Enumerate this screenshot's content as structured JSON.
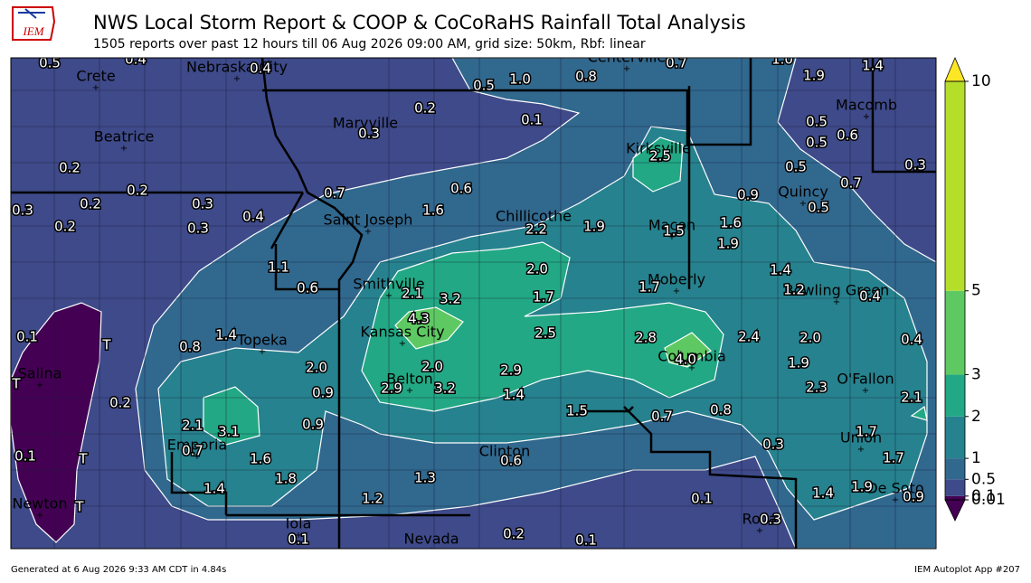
{
  "header": {
    "logo": "IEM",
    "title": "NWS Local Storm Report & COOP & CoCoRaHS Rainfall Total Analysis",
    "subtitle": "1505 reports over past 12 hours till 06 Aug 2026 09:00 AM, grid size: 50km, Rbf: linear"
  },
  "map": {
    "cities": [
      "Crete",
      "Nebraska City",
      "Centerville",
      "Beatrice",
      "Maryville",
      "Kirksville",
      "Macomb",
      "Quincy",
      "Saint Joseph",
      "Chillicothe",
      "Macon",
      "Moberly",
      "Bowling Green",
      "Smithville",
      "Kansas City",
      "Topeka",
      "Salina",
      "Belton",
      "Columbia",
      "O'Fallon",
      "Emporia",
      "Clinton",
      "Union",
      "De Soto",
      "Newton",
      "Iola",
      "Nevada",
      "Rolla"
    ],
    "labels": [
      "0.5",
      "0.4",
      "0.4",
      "0.5",
      "1.0",
      "0.8",
      "0.7",
      "1.0",
      "1.9",
      "1.4",
      "0.2",
      "0.3",
      "0.1",
      "2.5",
      "0.5",
      "0.6",
      "0.5",
      "0.5",
      "0.3",
      "0.2",
      "0.2",
      "0.7",
      "0.6",
      "0.9",
      "0.7",
      "0.5",
      "0.3",
      "0.2",
      "0.3",
      "0.2",
      "0.3",
      "0.4",
      "1.6",
      "2.2",
      "1.9",
      "1.5",
      "1.6",
      "1.9",
      "1.1",
      "0.6",
      "2.0",
      "1.4",
      "2.1",
      "3.2",
      "1.7",
      "1.7",
      "1.2",
      "0.4",
      "4.3",
      "2.5",
      "2.8",
      "4.0",
      "2.4",
      "2.0",
      "0.4",
      "0.1",
      "0.8",
      "1.4",
      "2.0",
      "2.0",
      "2.9",
      "1.9",
      "2.3",
      "0.9",
      "2.9",
      "3.2",
      "1.4",
      "2.1",
      "0.2",
      "1.5",
      "0.7",
      "0.8",
      "0.9",
      "2.1",
      "3.1",
      "0.3",
      "1.7",
      "0.1",
      "0.7",
      "1.6",
      "0.6",
      "1.7",
      "1.8",
      "1.3",
      "1.4",
      "1.2",
      "0.1",
      "1.4",
      "1.9",
      "0.9",
      "0.3",
      "0.1",
      "0.2",
      "0.1",
      "T",
      "T",
      "T",
      "T"
    ]
  },
  "colorbar": {
    "ticks": [
      0.01,
      0.1,
      0.5,
      1,
      2,
      3,
      5,
      10
    ],
    "colors": [
      "#440154",
      "#3e4a89",
      "#31688e",
      "#26828e",
      "#22a884",
      "#5ec962",
      "#b5de2b"
    ],
    "over_color": "#fde725",
    "under_color": "#440154"
  },
  "footer": {
    "left": "Generated at 6 Aug 2026 9:33 AM CDT in 4.84s",
    "right": "IEM Autoplot App #207"
  }
}
